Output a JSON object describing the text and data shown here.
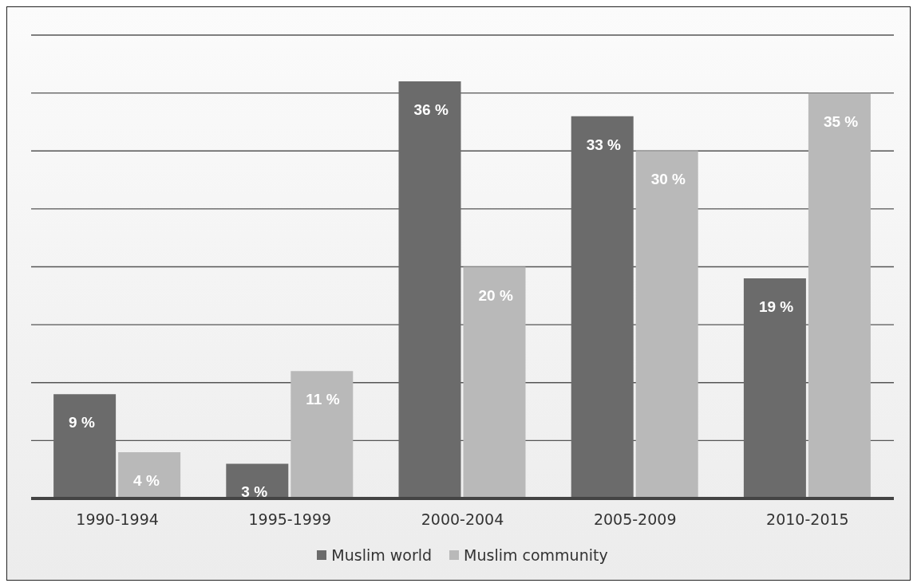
{
  "chart_data": {
    "type": "bar",
    "categories": [
      "1990-1994",
      "1995-1999",
      "2000-2004",
      "2005-2009",
      "2010-2015"
    ],
    "series": [
      {
        "name": "Muslim world",
        "color": "#6b6b6b",
        "values": [
          9,
          3,
          36,
          33,
          19
        ],
        "value_labels": [
          "9 %",
          "3 %",
          "36 %",
          "33 %",
          "19 %"
        ]
      },
      {
        "name": "Muslim community",
        "color": "#b9b9b9",
        "values": [
          4,
          11,
          20,
          30,
          35
        ],
        "value_labels": [
          "4 %",
          "11 %",
          "20 %",
          "30 %",
          "35 %"
        ]
      }
    ],
    "ylim": [
      0,
      40
    ],
    "yticks": [
      {
        "value": 0,
        "label": null
      },
      {
        "value": 5,
        "label": null
      },
      {
        "value": 10,
        "label": null
      },
      {
        "value": 15,
        "label": null
      },
      {
        "value": 20,
        "label": null
      },
      {
        "value": 25,
        "label": null
      },
      {
        "value": 30,
        "label": null
      },
      {
        "value": 35,
        "label": null
      },
      {
        "value": 40,
        "label": null
      }
    ],
    "tick_labels": "x",
    "grid": "y",
    "legend": "bottom"
  }
}
